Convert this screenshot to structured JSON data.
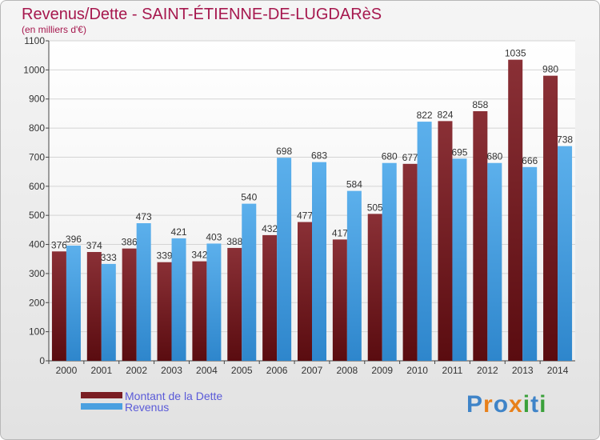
{
  "title": "Revenus/Dette - SAINT-ÉTIENNE-DE-LUGDARèS",
  "subtitle": "(en milliers d'€)",
  "logo": {
    "text": "Proxiti",
    "letters": [
      {
        "char": "P",
        "color": "#3f84c8"
      },
      {
        "char": "r",
        "color": "#e8801a"
      },
      {
        "char": "o",
        "color": "#3f84c8"
      },
      {
        "char": "x",
        "color": "#e8801a"
      },
      {
        "char": "i",
        "color": "#3aa03a"
      },
      {
        "char": "t",
        "color": "#3f84c8"
      },
      {
        "char": "i",
        "color": "#3aa03a"
      }
    ]
  },
  "colors": {
    "dette": "#7a1e23",
    "revenus": "#4aa0e0",
    "grid": "#d4d4d4",
    "axis": "#444444"
  },
  "chart_data": {
    "type": "bar",
    "categories": [
      "2000",
      "2001",
      "2002",
      "2003",
      "2004",
      "2005",
      "2006",
      "2007",
      "2008",
      "2009",
      "2010",
      "2011",
      "2012",
      "2013",
      "2014"
    ],
    "series": [
      {
        "name": "Montant de la Dette",
        "values": [
          376,
          374,
          386,
          339,
          342,
          388,
          432,
          477,
          417,
          505,
          677,
          824,
          858,
          1035,
          980
        ]
      },
      {
        "name": "Revenus",
        "values": [
          396,
          333,
          473,
          421,
          403,
          540,
          698,
          683,
          584,
          680,
          822,
          695,
          680,
          666,
          738
        ]
      }
    ],
    "yticks": [
      0,
      100,
      200,
      300,
      400,
      500,
      600,
      700,
      800,
      900,
      1000,
      1100
    ],
    "ylim": [
      0,
      1100
    ],
    "grid": true,
    "legend_position": "bottom-left"
  }
}
